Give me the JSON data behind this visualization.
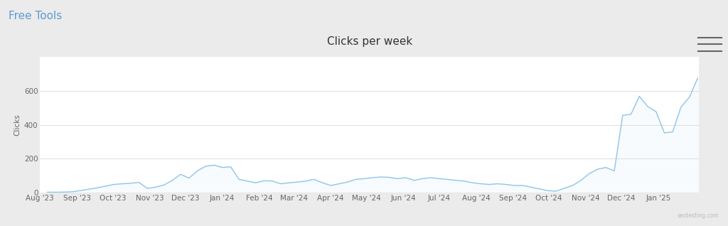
{
  "title": "Clicks per week",
  "ylabel": "Clicks",
  "header_text": "Free Tools",
  "header_color": "#5b9bd5",
  "watermark": "seotesting.com",
  "line_color": "#92c5e8",
  "fill_color": "#c5dff2",
  "bg_color": "#ffffff",
  "outer_bg_color": "#ebebeb",
  "chart_border_color": "#dddddd",
  "ylim": [
    0,
    800
  ],
  "yticks": [
    0,
    200,
    400,
    600
  ],
  "x_labels": [
    "Aug '23",
    "Sep '23",
    "Oct '23",
    "Nov '23",
    "Dec '23",
    "Jan '24",
    "Feb '24",
    "Mar '24",
    "Apr '24",
    "May '24",
    "Jun '24",
    "Jul '24",
    "Aug '24",
    "Sep '24",
    "Oct '24",
    "Nov '24",
    "Dec '24",
    "Jan '25"
  ],
  "data": [
    2,
    2,
    3,
    5,
    12,
    20,
    28,
    38,
    48,
    52,
    55,
    60,
    25,
    32,
    45,
    72,
    108,
    85,
    128,
    155,
    162,
    148,
    152,
    78,
    68,
    58,
    70,
    68,
    52,
    58,
    62,
    68,
    78,
    58,
    42,
    52,
    62,
    78,
    82,
    88,
    92,
    90,
    82,
    88,
    72,
    82,
    88,
    82,
    78,
    72,
    68,
    58,
    52,
    48,
    52,
    48,
    42,
    42,
    32,
    22,
    12,
    8,
    25,
    42,
    72,
    112,
    138,
    148,
    128,
    455,
    462,
    568,
    508,
    478,
    352,
    358,
    505,
    562,
    675
  ],
  "title_fontsize": 11,
  "tick_fontsize": 7.5,
  "label_fontsize": 7.5,
  "header_fontsize": 11
}
